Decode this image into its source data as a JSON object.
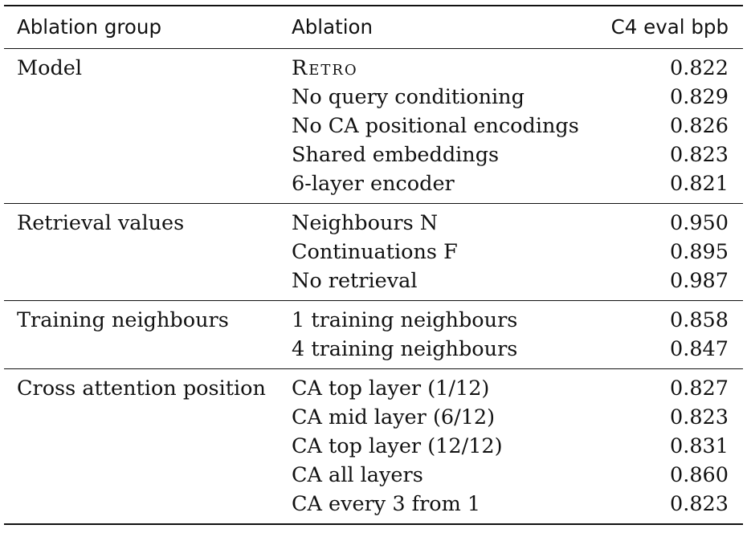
{
  "table": {
    "headers": {
      "group": "Ablation group",
      "ablation": "Ablation",
      "value": "C4 eval bpb"
    },
    "groups": [
      {
        "name": "Model",
        "rows": [
          {
            "ablation": "Retro",
            "value": "0.822"
          },
          {
            "ablation": "No query conditioning",
            "value": "0.829"
          },
          {
            "ablation": "No CA positional encodings",
            "value": "0.826"
          },
          {
            "ablation": "Shared embeddings",
            "value": "0.823"
          },
          {
            "ablation": "6-layer encoder",
            "value": "0.821"
          }
        ]
      },
      {
        "name": "Retrieval values",
        "rows": [
          {
            "ablation": "Neighbours N",
            "value": "0.950"
          },
          {
            "ablation": "Continuations F",
            "value": "0.895"
          },
          {
            "ablation": "No retrieval",
            "value": "0.987"
          }
        ]
      },
      {
        "name": "Training neighbours",
        "rows": [
          {
            "ablation": "1 training neighbours",
            "value": "0.858"
          },
          {
            "ablation": "4 training neighbours",
            "value": "0.847"
          }
        ]
      },
      {
        "name": "Cross attention position",
        "rows": [
          {
            "ablation": "CA top layer (1/12)",
            "value": "0.827"
          },
          {
            "ablation": "CA mid layer (6/12)",
            "value": "0.823"
          },
          {
            "ablation": "CA top layer (12/12)",
            "value": "0.831"
          },
          {
            "ablation": "CA all layers",
            "value": "0.860"
          },
          {
            "ablation": "CA every 3 from 1",
            "value": "0.823"
          }
        ]
      }
    ]
  }
}
